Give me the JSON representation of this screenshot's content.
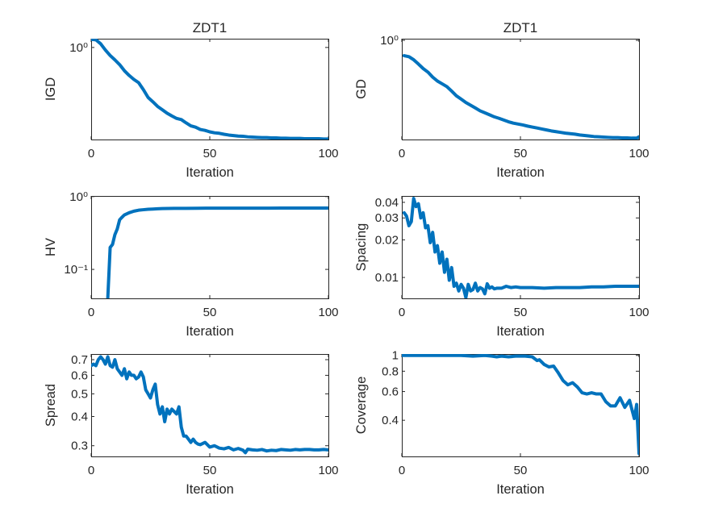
{
  "figure": {
    "background": "#ffffff",
    "line_color": "#0072BD"
  },
  "chart_data": [
    {
      "type": "line",
      "title": "ZDT1",
      "xlabel": "Iteration",
      "ylabel": "IGD",
      "xlim": [
        0,
        100
      ],
      "ylim": [
        0.23,
        1.15
      ],
      "yscale": "log",
      "xticks": [
        0,
        50,
        100
      ],
      "xtick_labels": [
        "0",
        "50",
        "100"
      ],
      "yticks": [
        1
      ],
      "ytick_labels": [
        "10⁰"
      ],
      "grid": false,
      "series": [
        {
          "x": [
            0,
            2,
            4,
            6,
            8,
            10,
            12,
            14,
            16,
            18,
            20,
            22,
            24,
            26,
            28,
            30,
            32,
            34,
            36,
            38,
            40,
            42,
            44,
            46,
            48,
            50,
            52,
            54,
            56,
            58,
            60,
            62,
            64,
            66,
            68,
            70,
            72,
            74,
            76,
            78,
            80,
            82,
            84,
            86,
            88,
            90,
            92,
            94,
            96,
            98,
            100
          ],
          "values": [
            1.14,
            1.13,
            1.06,
            0.96,
            0.88,
            0.82,
            0.76,
            0.69,
            0.64,
            0.6,
            0.57,
            0.51,
            0.45,
            0.42,
            0.39,
            0.37,
            0.35,
            0.335,
            0.322,
            0.316,
            0.3,
            0.286,
            0.28,
            0.27,
            0.266,
            0.26,
            0.256,
            0.254,
            0.25,
            0.247,
            0.245,
            0.243,
            0.242,
            0.24,
            0.239,
            0.238,
            0.237,
            0.237,
            0.236,
            0.236,
            0.235,
            0.235,
            0.234,
            0.234,
            0.234,
            0.233,
            0.233,
            0.233,
            0.233,
            0.232,
            0.232
          ]
        }
      ]
    },
    {
      "type": "line",
      "title": "ZDT1",
      "xlabel": "Iteration",
      "ylabel": "GD",
      "xlim": [
        0,
        100
      ],
      "ylim": [
        0.3,
        1.02
      ],
      "yscale": "log",
      "xticks": [
        0,
        50,
        100
      ],
      "xtick_labels": [
        "0",
        "50",
        "100"
      ],
      "yticks": [
        1
      ],
      "ytick_labels": [
        "10⁰"
      ],
      "grid": false,
      "series": [
        {
          "x": [
            1,
            3,
            5,
            7,
            9,
            11,
            13,
            15,
            17,
            19,
            21,
            23,
            25,
            27,
            29,
            31,
            33,
            35,
            37,
            39,
            41,
            43,
            45,
            47,
            49,
            51,
            53,
            55,
            57,
            59,
            61,
            63,
            65,
            67,
            69,
            71,
            73,
            75,
            77,
            79,
            81,
            83,
            85,
            87,
            89,
            91,
            93,
            95,
            97,
            99,
            100
          ],
          "values": [
            0.83,
            0.82,
            0.79,
            0.75,
            0.71,
            0.68,
            0.64,
            0.61,
            0.59,
            0.57,
            0.54,
            0.51,
            0.49,
            0.47,
            0.455,
            0.44,
            0.425,
            0.415,
            0.405,
            0.395,
            0.388,
            0.38,
            0.372,
            0.366,
            0.362,
            0.358,
            0.353,
            0.349,
            0.345,
            0.341,
            0.337,
            0.333,
            0.33,
            0.327,
            0.324,
            0.322,
            0.32,
            0.317,
            0.315,
            0.313,
            0.311,
            0.31,
            0.309,
            0.308,
            0.307,
            0.307,
            0.306,
            0.306,
            0.305,
            0.305,
            0.31
          ]
        }
      ]
    },
    {
      "type": "line",
      "title": "",
      "xlabel": "Iteration",
      "ylabel": "HV",
      "xlim": [
        0,
        100
      ],
      "ylim": [
        0.04,
        1.02
      ],
      "yscale": "log",
      "xticks": [
        0,
        50,
        100
      ],
      "xtick_labels": [
        "0",
        "50",
        "100"
      ],
      "yticks": [
        1,
        0.1
      ],
      "ytick_labels": [
        "10⁰",
        "10⁻¹"
      ],
      "grid": false,
      "series": [
        {
          "x": [
            7,
            8,
            9,
            10,
            11,
            12,
            13,
            14,
            16,
            18,
            20,
            22,
            24,
            26,
            28,
            30,
            35,
            40,
            45,
            50,
            55,
            60,
            65,
            70,
            75,
            80,
            85,
            90,
            95,
            100
          ],
          "values": [
            0.04,
            0.2,
            0.22,
            0.3,
            0.36,
            0.48,
            0.52,
            0.56,
            0.6,
            0.63,
            0.65,
            0.66,
            0.67,
            0.675,
            0.68,
            0.685,
            0.69,
            0.69,
            0.692,
            0.693,
            0.693,
            0.694,
            0.694,
            0.694,
            0.694,
            0.695,
            0.695,
            0.695,
            0.695,
            0.695
          ]
        }
      ]
    },
    {
      "type": "line",
      "title": "",
      "xlabel": "Iteration",
      "ylabel": "Spacing",
      "xlim": [
        0,
        100
      ],
      "ylim": [
        0.0068,
        0.045
      ],
      "yscale": "log",
      "xticks": [
        0,
        50,
        100
      ],
      "xtick_labels": [
        "0",
        "50",
        "100"
      ],
      "yticks": [
        0.04,
        0.03,
        0.02,
        0.01
      ],
      "ytick_labels": [
        "0.04",
        "0.03",
        "0.02",
        "0.01"
      ],
      "grid": false,
      "series": [
        {
          "x": [
            1,
            2,
            3,
            4,
            5,
            6,
            7,
            8,
            9,
            10,
            11,
            12,
            13,
            14,
            15,
            16,
            17,
            18,
            19,
            20,
            21,
            22,
            23,
            24,
            25,
            26,
            27,
            28,
            29,
            30,
            31,
            32,
            33,
            34,
            35,
            36,
            37,
            38,
            39,
            40,
            42,
            44,
            46,
            48,
            50,
            55,
            60,
            65,
            70,
            75,
            80,
            85,
            90,
            95,
            100
          ],
          "values": [
            0.033,
            0.031,
            0.026,
            0.028,
            0.043,
            0.037,
            0.039,
            0.03,
            0.033,
            0.025,
            0.026,
            0.019,
            0.023,
            0.016,
            0.018,
            0.013,
            0.016,
            0.011,
            0.014,
            0.0095,
            0.012,
            0.0085,
            0.009,
            0.0078,
            0.0088,
            0.0082,
            0.0069,
            0.0088,
            0.0078,
            0.008,
            0.009,
            0.0078,
            0.0083,
            0.0081,
            0.0074,
            0.0089,
            0.0082,
            0.0084,
            0.0081,
            0.0082,
            0.0082,
            0.0085,
            0.0083,
            0.0084,
            0.0083,
            0.0083,
            0.0082,
            0.0083,
            0.0083,
            0.0083,
            0.0084,
            0.0084,
            0.0085,
            0.0085,
            0.0085
          ]
        }
      ]
    },
    {
      "type": "line",
      "title": "",
      "xlabel": "Iteration",
      "ylabel": "Spread",
      "xlim": [
        0,
        100
      ],
      "ylim": [
        0.27,
        0.74
      ],
      "yscale": "log",
      "xticks": [
        0,
        50,
        100
      ],
      "xtick_labels": [
        "0",
        "50",
        "100"
      ],
      "yticks": [
        0.7,
        0.6,
        0.5,
        0.4,
        0.3
      ],
      "ytick_labels": [
        "0.7",
        "0.6",
        "0.5",
        "0.4",
        "0.3"
      ],
      "grid": false,
      "series": [
        {
          "x": [
            0,
            1,
            2,
            3,
            4,
            5,
            6,
            7,
            8,
            9,
            10,
            11,
            12,
            13,
            14,
            15,
            16,
            17,
            18,
            19,
            20,
            21,
            22,
            23,
            24,
            25,
            26,
            27,
            28,
            29,
            30,
            31,
            32,
            33,
            34,
            35,
            36,
            37,
            38,
            39,
            40,
            41,
            42,
            43,
            44,
            45,
            46,
            48,
            50,
            52,
            54,
            56,
            58,
            60,
            62,
            64,
            65,
            66,
            68,
            70,
            72,
            74,
            76,
            78,
            80,
            82,
            84,
            86,
            88,
            90,
            92,
            94,
            96,
            98,
            100
          ],
          "values": [
            0.66,
            0.67,
            0.66,
            0.7,
            0.72,
            0.7,
            0.67,
            0.72,
            0.66,
            0.65,
            0.7,
            0.64,
            0.62,
            0.6,
            0.64,
            0.58,
            0.62,
            0.6,
            0.6,
            0.58,
            0.59,
            0.62,
            0.59,
            0.52,
            0.5,
            0.48,
            0.52,
            0.55,
            0.45,
            0.41,
            0.44,
            0.38,
            0.43,
            0.41,
            0.43,
            0.42,
            0.41,
            0.44,
            0.36,
            0.33,
            0.33,
            0.32,
            0.31,
            0.32,
            0.31,
            0.305,
            0.303,
            0.31,
            0.296,
            0.3,
            0.293,
            0.291,
            0.295,
            0.288,
            0.292,
            0.287,
            0.28,
            0.29,
            0.288,
            0.287,
            0.289,
            0.285,
            0.287,
            0.286,
            0.289,
            0.288,
            0.287,
            0.289,
            0.288,
            0.289,
            0.289,
            0.288,
            0.288,
            0.289,
            0.288
          ]
        }
      ]
    },
    {
      "type": "line",
      "title": "",
      "xlabel": "Iteration",
      "ylabel": "Coverage",
      "xlim": [
        0,
        100
      ],
      "ylim": [
        0.24,
        1.02
      ],
      "yscale": "log",
      "xticks": [
        0,
        50,
        100
      ],
      "xtick_labels": [
        "0",
        "50",
        "100"
      ],
      "yticks": [
        1,
        0.8,
        0.6,
        0.4
      ],
      "ytick_labels": [
        "1",
        "0.8",
        "0.6",
        "0.4"
      ],
      "grid": false,
      "series": [
        {
          "x": [
            0,
            5,
            10,
            15,
            20,
            25,
            30,
            35,
            38,
            40,
            42,
            45,
            48,
            50,
            52,
            55,
            57,
            58,
            60,
            62,
            64,
            66,
            68,
            70,
            72,
            74,
            76,
            78,
            80,
            82,
            84,
            86,
            88,
            90,
            92,
            94,
            96,
            98,
            99,
            100
          ],
          "values": [
            1,
            1,
            1,
            1,
            1,
            1,
            0.99,
            1,
            0.99,
            0.98,
            0.99,
            0.98,
            0.99,
            0.99,
            0.99,
            0.98,
            0.93,
            0.94,
            0.88,
            0.85,
            0.86,
            0.78,
            0.7,
            0.66,
            0.68,
            0.64,
            0.59,
            0.58,
            0.59,
            0.58,
            0.58,
            0.52,
            0.49,
            0.49,
            0.55,
            0.48,
            0.53,
            0.41,
            0.5,
            0.25
          ]
        }
      ]
    }
  ]
}
